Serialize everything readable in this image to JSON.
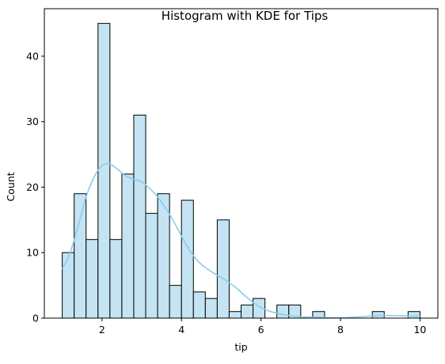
{
  "chart_data": {
    "type": "bar",
    "title": "Histogram with KDE for Tips",
    "xlabel": "tip",
    "ylabel": "Count",
    "xlim": [
      0.55,
      10.45
    ],
    "ylim": [
      0,
      47.25
    ],
    "bin_start": 1.0,
    "bin_width": 0.3,
    "values": [
      10,
      19,
      12,
      45,
      12,
      22,
      31,
      16,
      19,
      5,
      18,
      4,
      3,
      15,
      1,
      2,
      3,
      0,
      2,
      2,
      0,
      1,
      0,
      0,
      0,
      0,
      1,
      0,
      0,
      1
    ],
    "xticks": [
      2,
      4,
      6,
      8,
      10
    ],
    "yticks": [
      0,
      10,
      20,
      30,
      40
    ],
    "bar_color": "#c4e4f3",
    "bar_edge_color": "#000000",
    "kde": {
      "name": "KDE",
      "color": "#87ceeb",
      "x": [
        1.0,
        1.2,
        1.4,
        1.6,
        1.8,
        2.0,
        2.2,
        2.4,
        2.6,
        2.8,
        3.0,
        3.2,
        3.4,
        3.6,
        3.8,
        4.0,
        4.2,
        4.4,
        4.6,
        4.8,
        5.0,
        5.2,
        5.4,
        5.6,
        5.8,
        6.0,
        6.3,
        6.6,
        7.0,
        7.5,
        8.0,
        8.5,
        9.0,
        9.5,
        10.0
      ],
      "y": [
        7.5,
        10.0,
        14.0,
        18.5,
        21.5,
        23.3,
        23.5,
        22.7,
        21.7,
        21.2,
        20.8,
        19.8,
        18.5,
        16.8,
        14.8,
        12.5,
        10.4,
        8.8,
        7.7,
        6.9,
        6.2,
        5.4,
        4.5,
        3.4,
        2.4,
        1.6,
        0.9,
        0.5,
        0.2,
        0.1,
        0.05,
        0.2,
        0.4,
        0.35,
        0.3
      ]
    }
  }
}
